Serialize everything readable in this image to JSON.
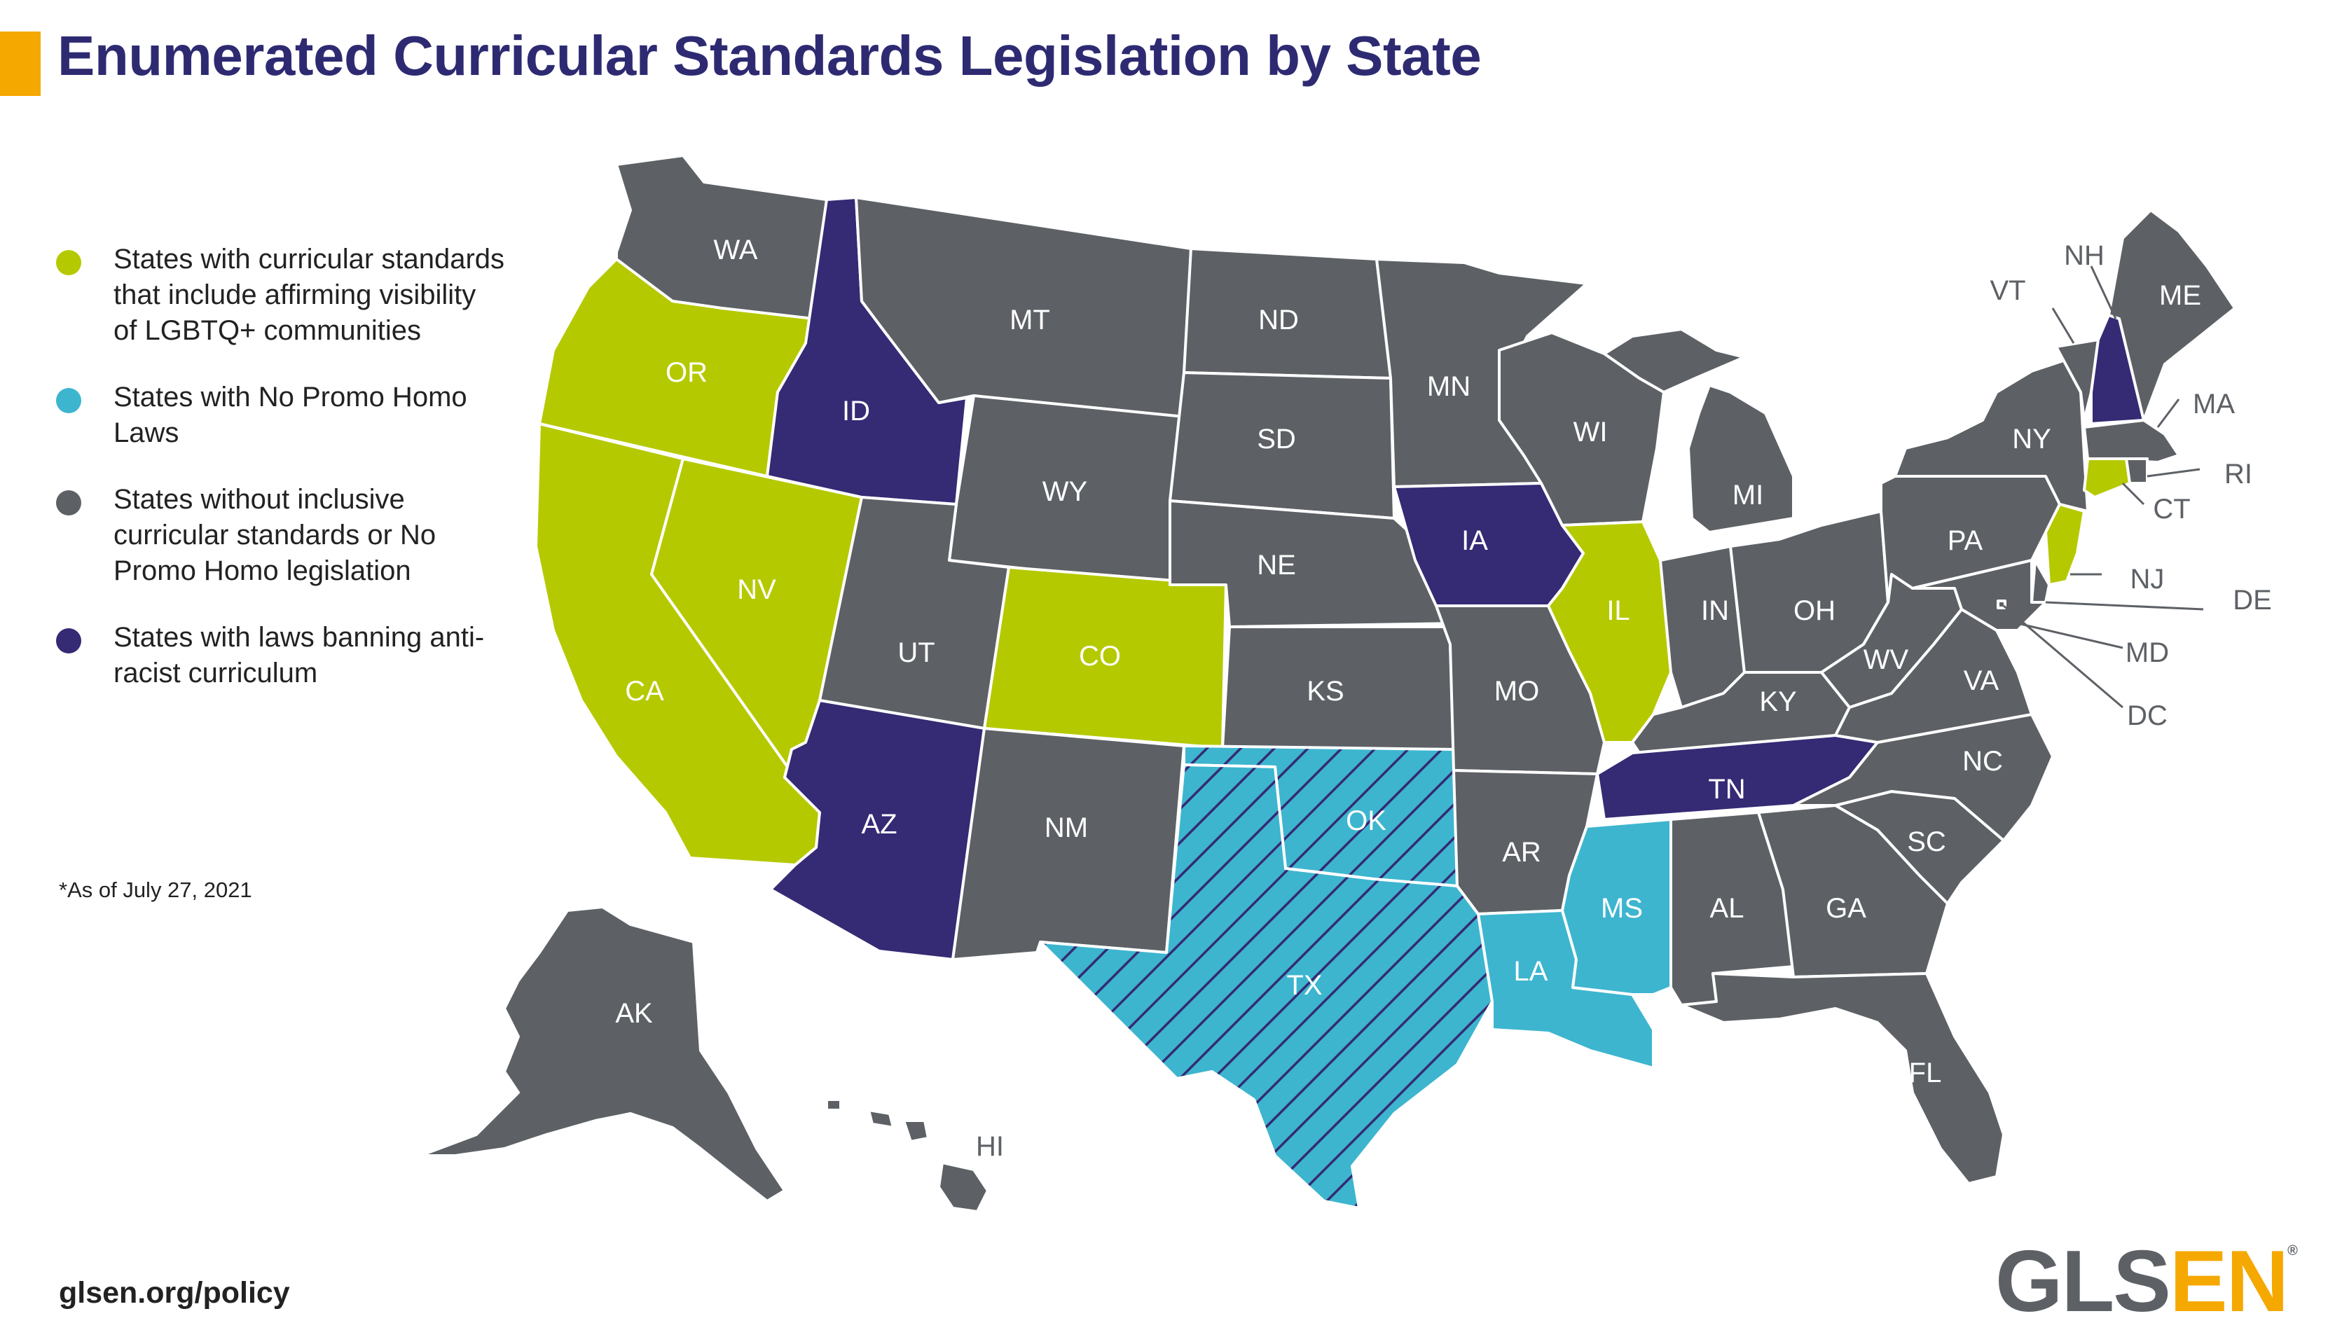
{
  "title": "Enumerated Curricular Standards Legislation by State",
  "colors": {
    "affirming": "#b5c900",
    "no_promo_homo": "#3db5cf",
    "none": "#5d6166",
    "anti_racist_ban": "#352a74",
    "accent": "#f5a800",
    "title": "#2e2a72"
  },
  "legend": [
    {
      "category": "affirming",
      "label": "States with curricular standards that include affirming visibility of LGBTQ+ communities"
    },
    {
      "category": "no_promo_homo",
      "label": "States with No Promo Homo Laws"
    },
    {
      "category": "none",
      "label": "States without inclusive curricular standards or No Promo Homo legislation"
    },
    {
      "category": "anti_racist_ban",
      "label": "States with laws banning anti-racist curriculum"
    }
  ],
  "footnote": "*As of July 27, 2021",
  "url": "glsen.org/policy",
  "logo": {
    "part1": "GLS",
    "part2": "EN",
    "mark": "®"
  },
  "states": {
    "WA": {
      "category": "none"
    },
    "OR": {
      "category": "affirming"
    },
    "CA": {
      "category": "affirming"
    },
    "NV": {
      "category": "affirming"
    },
    "ID": {
      "category": "anti_racist_ban"
    },
    "MT": {
      "category": "none"
    },
    "WY": {
      "category": "none"
    },
    "UT": {
      "category": "none"
    },
    "AZ": {
      "category": "anti_racist_ban"
    },
    "CO": {
      "category": "affirming"
    },
    "NM": {
      "category": "none"
    },
    "ND": {
      "category": "none"
    },
    "SD": {
      "category": "none"
    },
    "NE": {
      "category": "none"
    },
    "KS": {
      "category": "none"
    },
    "OK": {
      "category": "no_promo_homo",
      "also": "anti_racist_ban"
    },
    "TX": {
      "category": "no_promo_homo",
      "also": "anti_racist_ban"
    },
    "MN": {
      "category": "none"
    },
    "IA": {
      "category": "anti_racist_ban"
    },
    "MO": {
      "category": "none"
    },
    "AR": {
      "category": "none"
    },
    "LA": {
      "category": "no_promo_homo"
    },
    "WI": {
      "category": "none"
    },
    "IL": {
      "category": "affirming"
    },
    "MI": {
      "category": "none"
    },
    "IN": {
      "category": "none"
    },
    "OH": {
      "category": "none"
    },
    "KY": {
      "category": "none"
    },
    "TN": {
      "category": "anti_racist_ban"
    },
    "MS": {
      "category": "no_promo_homo"
    },
    "AL": {
      "category": "none"
    },
    "GA": {
      "category": "none"
    },
    "FL": {
      "category": "none"
    },
    "SC": {
      "category": "none"
    },
    "NC": {
      "category": "none"
    },
    "VA": {
      "category": "none"
    },
    "WV": {
      "category": "none"
    },
    "PA": {
      "category": "none"
    },
    "NY": {
      "category": "none"
    },
    "VT": {
      "category": "none"
    },
    "NH": {
      "category": "anti_racist_ban"
    },
    "ME": {
      "category": "none"
    },
    "MA": {
      "category": "none"
    },
    "RI": {
      "category": "none"
    },
    "CT": {
      "category": "affirming"
    },
    "NJ": {
      "category": "affirming"
    },
    "DE": {
      "category": "none"
    },
    "MD": {
      "category": "none"
    },
    "DC": {
      "category": "none"
    },
    "AK": {
      "category": "none"
    },
    "HI": {
      "category": "none"
    }
  }
}
